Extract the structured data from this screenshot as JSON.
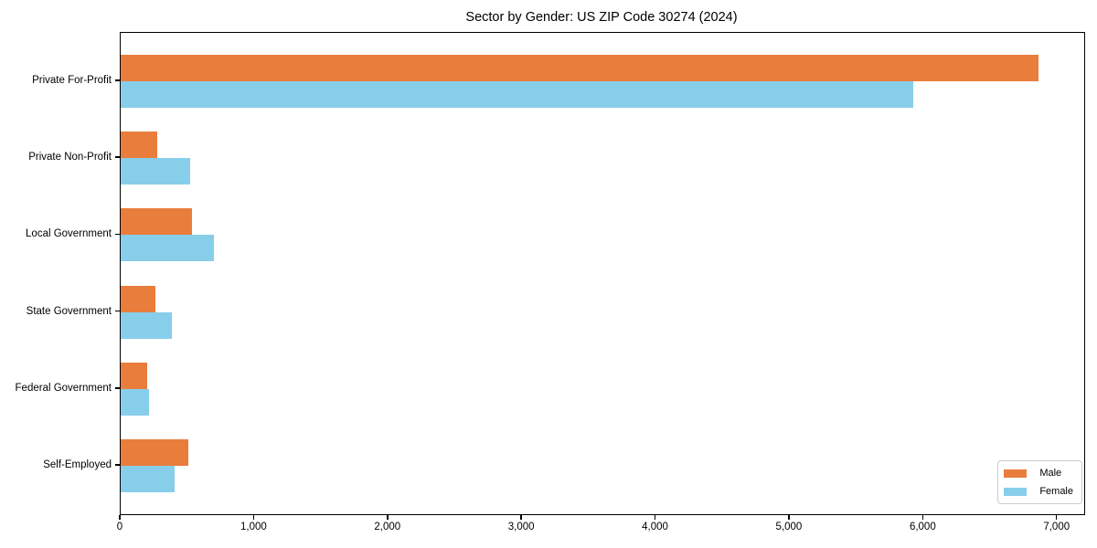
{
  "chart_data": {
    "type": "bar",
    "orientation": "horizontal",
    "title": "Sector by Gender: US ZIP Code 30274 (2024)",
    "categories": [
      "Private For-Profit",
      "Private Non-Profit",
      "Local Government",
      "State Government",
      "Federal Government",
      "Self-Employed"
    ],
    "series": [
      {
        "name": "Male",
        "color": "#E87D3C",
        "values": [
          6860,
          270,
          535,
          260,
          195,
          505
        ]
      },
      {
        "name": "Female",
        "color": "#87CEEB",
        "values": [
          5920,
          520,
          700,
          385,
          210,
          400
        ]
      }
    ],
    "xlabel": "",
    "ylabel": "",
    "xlim": [
      0,
      7200
    ],
    "xticks": [
      0,
      1000,
      2000,
      3000,
      4000,
      5000,
      6000,
      7000
    ],
    "xtick_labels": [
      "0",
      "1,000",
      "2,000",
      "3,000",
      "4,000",
      "5,000",
      "6,000",
      "7,000"
    ],
    "grid": false,
    "legend": {
      "position": "lower right",
      "entries": [
        "Male",
        "Female"
      ]
    },
    "axis_color": "#000000",
    "legend_border_color": "#cccccc"
  }
}
